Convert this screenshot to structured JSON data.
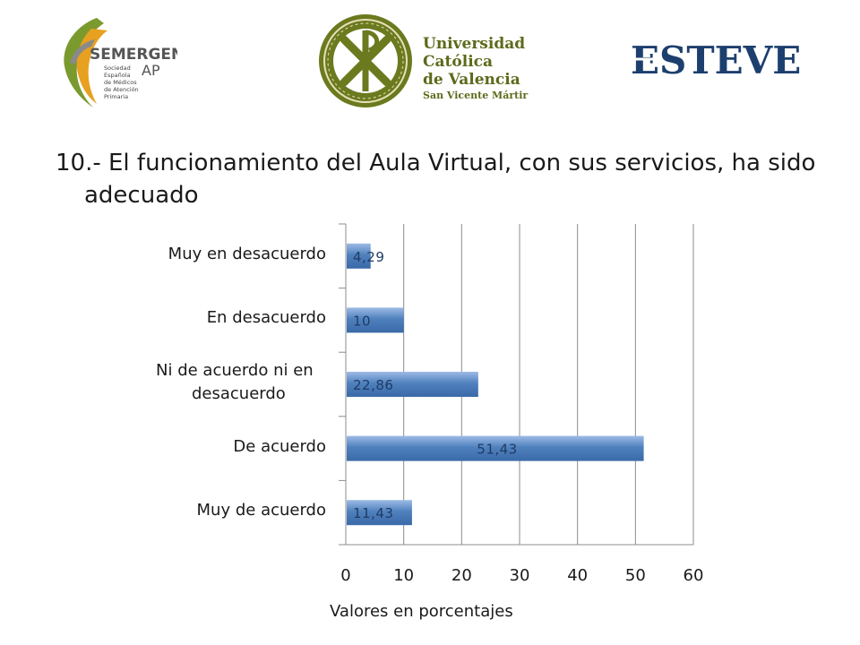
{
  "logos": {
    "semergen": {
      "name": "SEMERGEN",
      "suffix": "AP",
      "subtitle_lines": [
        "Sociedad",
        "Española",
        "de Médicos",
        "de Atención",
        "Primaria"
      ]
    },
    "ucv": {
      "lines": [
        "Universidad",
        "Católica",
        "de Valencia",
        "San Vicente Mártir"
      ]
    },
    "esteve": {
      "name": "ESTEVE"
    }
  },
  "slide": {
    "title_line1": "10.- El funcionamiento del Aula Virtual, con sus servicios, ha sido",
    "title_line2": "adecuado"
  },
  "chart_data": {
    "type": "bar",
    "orientation": "horizontal",
    "categories": [
      "Muy en desacuerdo",
      "En desacuerdo",
      "Ni de acuerdo ni en desacuerdo",
      "De acuerdo",
      "Muy de acuerdo"
    ],
    "category_label_lines": [
      [
        "Muy en desacuerdo"
      ],
      [
        "En desacuerdo"
      ],
      [
        "Ni de acuerdo ni en",
        "desacuerdo"
      ],
      [
        "De acuerdo"
      ],
      [
        "Muy de acuerdo"
      ]
    ],
    "values": [
      4.29,
      10,
      22.86,
      51.43,
      11.43
    ],
    "data_labels": [
      "4,29",
      "10",
      "22,86",
      "51,43",
      "11,43"
    ],
    "xlim": [
      0,
      60
    ],
    "x_ticks": [
      0,
      10,
      20,
      30,
      40,
      50,
      60
    ],
    "xlabel": "Valores en porcentajes",
    "ylabel": "",
    "grid": true,
    "bar_color": "#4f81bd"
  }
}
